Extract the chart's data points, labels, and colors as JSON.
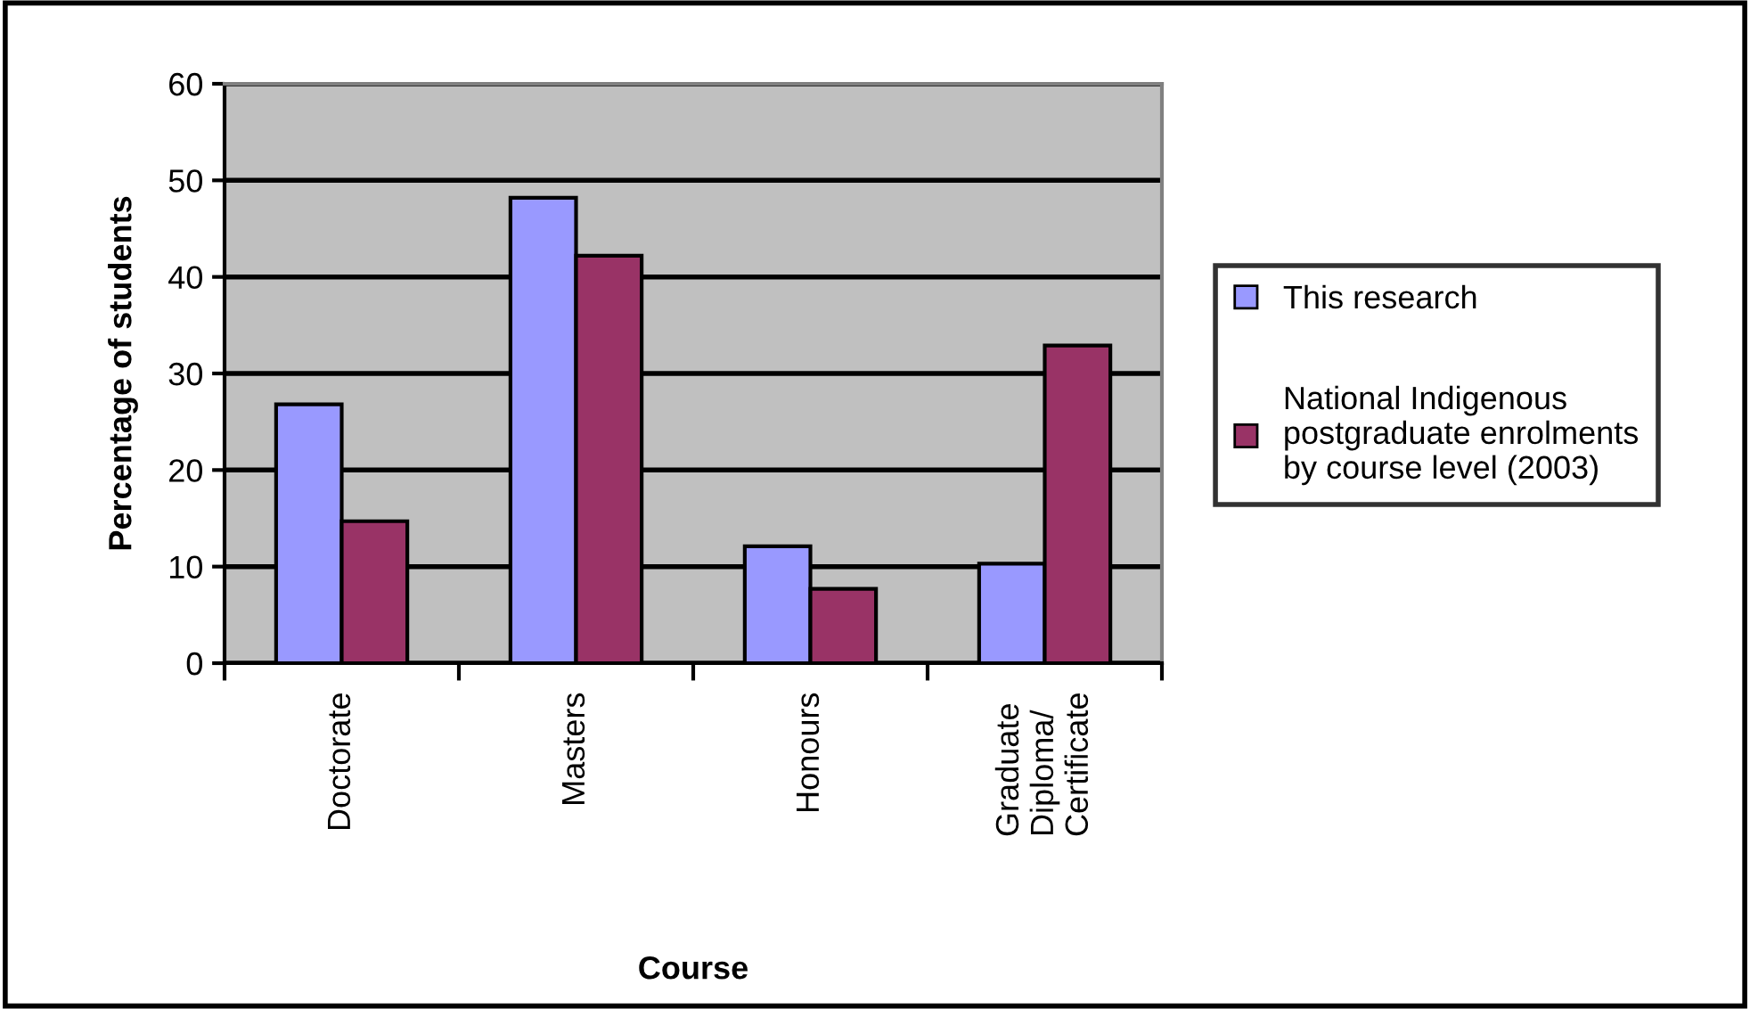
{
  "chart_data": {
    "type": "bar",
    "xlabel": "Course",
    "ylabel": "Percentage of students",
    "categories": [
      "Doctorate",
      "Masters",
      "Honours",
      "Graduate\nDiploma/\nCertificate"
    ],
    "series": [
      {
        "name": "This research",
        "color": "#9999ff",
        "values": [
          26.8,
          48.2,
          12.1,
          10.3
        ]
      },
      {
        "name": "National Indigenous\npostgraduate enrolments\nby course level (2003)",
        "color": "#993366",
        "values": [
          14.7,
          42.2,
          7.7,
          32.9
        ]
      }
    ],
    "ylim": [
      0,
      60
    ],
    "yticks": [
      0,
      10,
      20,
      30,
      40,
      50,
      60
    ],
    "grid": "y",
    "legend": "right"
  }
}
